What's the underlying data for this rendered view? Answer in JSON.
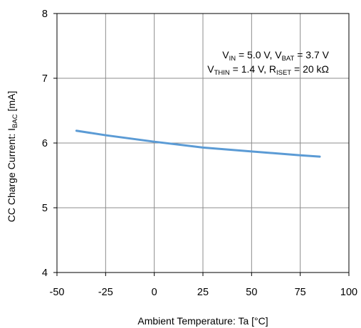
{
  "chart_data": {
    "type": "line",
    "xlabel": "Ambient Temperature: Ta [°C]",
    "ylabel": {
      "main": "CC Charge Current: I",
      "sub": "BAC",
      "unit": " [mA]"
    },
    "xlim": [
      -50,
      100
    ],
    "ylim": [
      4,
      8
    ],
    "xticks": [
      -50,
      -25,
      0,
      25,
      50,
      75,
      100
    ],
    "yticks": [
      4,
      5,
      6,
      7,
      8
    ],
    "xtick_labels": [
      "-50",
      "-25",
      "0",
      "25",
      "50",
      "75",
      "100"
    ],
    "ytick_labels": [
      "4",
      "5",
      "6",
      "7",
      "8"
    ],
    "grid": true,
    "annotation": {
      "line1": [
        {
          "t": "V"
        },
        {
          "t": "IN",
          "sub": true
        },
        {
          "t": " = 5.0 V, V"
        },
        {
          "t": "BAT",
          "sub": true
        },
        {
          "t": " = 3.7 V"
        }
      ],
      "line2": [
        {
          "t": "V"
        },
        {
          "t": "THIN",
          "sub": true
        },
        {
          "t": " = 1.4 V, R"
        },
        {
          "t": "ISET",
          "sub": true
        },
        {
          "t": " = 20 kΩ"
        }
      ]
    },
    "series": [
      {
        "color": "#5b9bd5",
        "x": [
          -40,
          -25,
          0,
          25,
          50,
          75,
          85
        ],
        "y": [
          6.19,
          6.12,
          6.02,
          5.93,
          5.87,
          5.81,
          5.79
        ]
      }
    ]
  }
}
